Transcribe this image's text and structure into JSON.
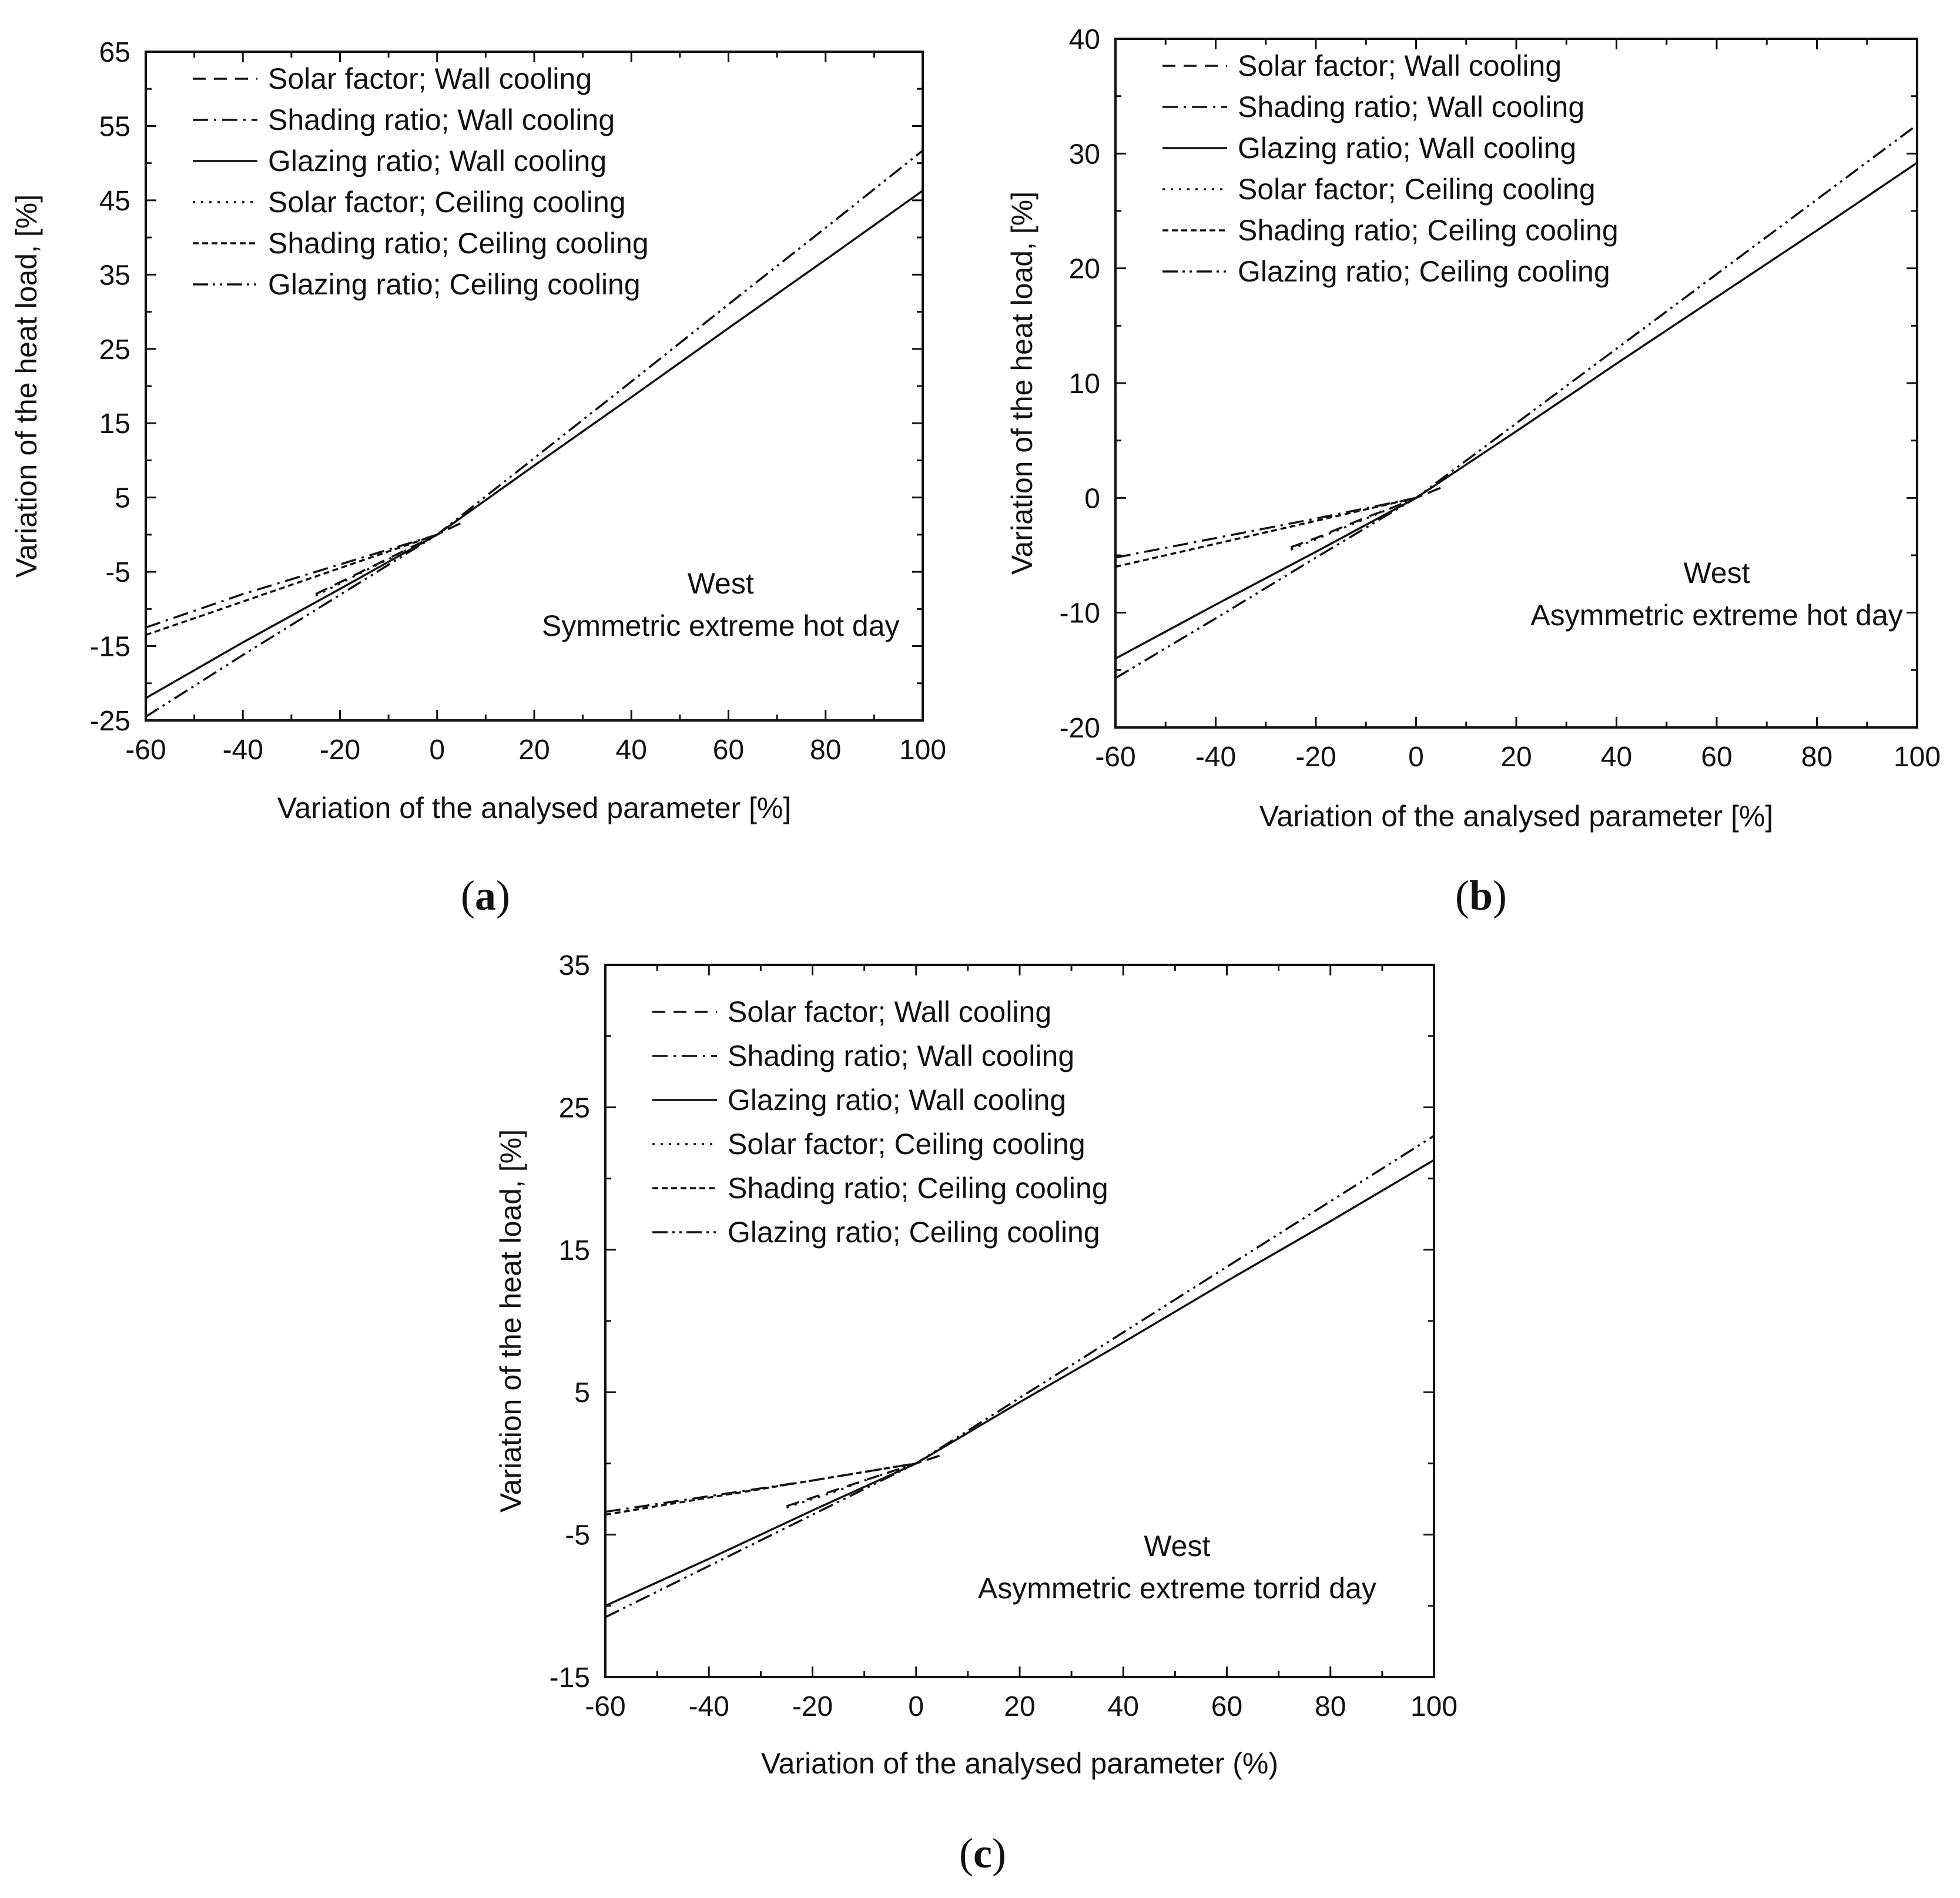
{
  "chart_data": [
    {
      "panel_label": "a",
      "type": "line",
      "xlabel": "Variation of the analysed parameter [%]",
      "ylabel": "Variation of the heat load, [%]",
      "xlim": [
        -60,
        100
      ],
      "ylim": [
        -25,
        65
      ],
      "xticks": [
        -60,
        -40,
        -20,
        0,
        20,
        40,
        60,
        80,
        100
      ],
      "yticks": [
        -25,
        -15,
        -5,
        5,
        15,
        25,
        35,
        45,
        55,
        65
      ],
      "annotation": [
        "West",
        "Symmetric extreme hot day"
      ],
      "legend_position": "top-left",
      "series": [
        {
          "name": "Solar factor; Wall cooling",
          "style": "dashed",
          "x": [
            -25,
            -20,
            -15,
            -10,
            -5,
            0,
            5
          ],
          "y": [
            -8.0,
            -6.4,
            -4.8,
            -3.2,
            -1.6,
            0.0,
            1.6
          ]
        },
        {
          "name": "Shading ratio; Wall cooling",
          "style": "dashdot",
          "x": [
            -60,
            -40,
            -20,
            0
          ],
          "y": [
            -12.5,
            -8.0,
            -4.0,
            0.0
          ]
        },
        {
          "name": "Glazing ratio; Wall cooling",
          "style": "solid",
          "x": [
            -60,
            -40,
            -20,
            0,
            20,
            40,
            60,
            80,
            100
          ],
          "y": [
            -22.0,
            -14.5,
            -7.3,
            0.0,
            9.3,
            18.5,
            27.8,
            37.0,
            46.3
          ]
        },
        {
          "name": "Solar factor; Ceiling cooling",
          "style": "dotted",
          "x": [
            -25,
            -20,
            -15,
            -10,
            -5,
            0,
            5
          ],
          "y": [
            -8.2,
            -6.6,
            -4.9,
            -3.3,
            -1.6,
            0.0,
            1.6
          ]
        },
        {
          "name": "Shading ratio; Ceiling cooling",
          "style": "shortdash",
          "x": [
            -60,
            -40,
            -20,
            0
          ],
          "y": [
            -13.5,
            -9.0,
            -4.5,
            0.0
          ]
        },
        {
          "name": "Glazing ratio; Ceiling cooling",
          "style": "dashdotdot",
          "x": [
            -60,
            -40,
            -20,
            0,
            20,
            40,
            60,
            80,
            100
          ],
          "y": [
            -24.5,
            -16.2,
            -8.1,
            0.0,
            10.3,
            20.6,
            31.0,
            41.3,
            51.7
          ]
        }
      ]
    },
    {
      "panel_label": "b",
      "type": "line",
      "xlabel": "Variation of the analysed parameter [%]",
      "ylabel": "Variation of the heat load, [%]",
      "xlim": [
        -60,
        100
      ],
      "ylim": [
        -20,
        40
      ],
      "xticks": [
        -60,
        -40,
        -20,
        0,
        20,
        40,
        60,
        80,
        100
      ],
      "yticks": [
        -20,
        -10,
        0,
        10,
        20,
        30,
        40
      ],
      "annotation": [
        "West",
        "Asymmetric extreme hot day"
      ],
      "legend_position": "top-left",
      "series": [
        {
          "name": "Solar factor; Wall cooling",
          "style": "dashed",
          "x": [
            -25,
            -20,
            -15,
            -10,
            -5,
            0,
            5
          ],
          "y": [
            -4.3,
            -3.5,
            -2.6,
            -1.7,
            -0.9,
            0.0,
            0.9
          ]
        },
        {
          "name": "Shading ratio; Wall cooling",
          "style": "dashdot",
          "x": [
            -60,
            -40,
            -20,
            0
          ],
          "y": [
            -5.2,
            -3.5,
            -1.8,
            0.0
          ]
        },
        {
          "name": "Glazing ratio; Wall cooling",
          "style": "solid",
          "x": [
            -60,
            -40,
            -20,
            0,
            20,
            40,
            60,
            80,
            100
          ],
          "y": [
            -14.0,
            -9.3,
            -4.7,
            0.0,
            5.8,
            11.7,
            17.5,
            23.3,
            29.2
          ]
        },
        {
          "name": "Solar factor; Ceiling cooling",
          "style": "dotted",
          "x": [
            -25,
            -20,
            -15,
            -10,
            -5,
            0,
            5
          ],
          "y": [
            -4.5,
            -3.6,
            -2.7,
            -1.8,
            -0.9,
            0.0,
            0.9
          ]
        },
        {
          "name": "Shading ratio; Ceiling cooling",
          "style": "shortdash",
          "x": [
            -60,
            -40,
            -20,
            0
          ],
          "y": [
            -6.0,
            -4.0,
            -2.0,
            0.0
          ]
        },
        {
          "name": "Glazing ratio; Ceiling cooling",
          "style": "dashdotdot",
          "x": [
            -60,
            -40,
            -20,
            0,
            20,
            40,
            60,
            80,
            100
          ],
          "y": [
            -15.7,
            -10.5,
            -5.2,
            0.0,
            6.5,
            13.0,
            19.5,
            26.0,
            32.5
          ]
        }
      ]
    },
    {
      "panel_label": "c",
      "type": "line",
      "xlabel": "Variation of the analysed parameter (%)",
      "ylabel": "Variation of the heat load, [%]",
      "xlim": [
        -60,
        100
      ],
      "ylim": [
        -15,
        35
      ],
      "xticks": [
        -60,
        -40,
        -20,
        0,
        20,
        40,
        60,
        80,
        100
      ],
      "yticks": [
        -15,
        -5,
        5,
        15,
        25,
        35
      ],
      "annotation": [
        "West",
        "Asymmetric extreme torrid day"
      ],
      "legend_position": "top-left",
      "series": [
        {
          "name": "Solar factor; Wall cooling",
          "style": "dashed",
          "x": [
            -25,
            -20,
            -15,
            -10,
            -5,
            0,
            5
          ],
          "y": [
            -3.0,
            -2.4,
            -1.8,
            -1.2,
            -0.6,
            0.0,
            0.6
          ]
        },
        {
          "name": "Shading ratio; Wall cooling",
          "style": "dashdot",
          "x": [
            -60,
            -40,
            -20,
            0
          ],
          "y": [
            -3.4,
            -2.3,
            -1.2,
            0.0
          ]
        },
        {
          "name": "Glazing ratio; Wall cooling",
          "style": "solid",
          "x": [
            -60,
            -40,
            -20,
            0,
            20,
            40,
            60,
            80,
            100
          ],
          "y": [
            -10.0,
            -6.7,
            -3.3,
            0.0,
            4.3,
            8.5,
            12.8,
            17.0,
            21.3
          ]
        },
        {
          "name": "Solar factor; Ceiling cooling",
          "style": "dotted",
          "x": [
            -25,
            -20,
            -15,
            -10,
            -5,
            0,
            5
          ],
          "y": [
            -3.1,
            -2.5,
            -1.9,
            -1.2,
            -0.6,
            0.0,
            0.6
          ]
        },
        {
          "name": "Shading ratio; Ceiling cooling",
          "style": "shortdash",
          "x": [
            -60,
            -40,
            -20,
            0
          ],
          "y": [
            -3.6,
            -2.4,
            -1.2,
            0.0
          ]
        },
        {
          "name": "Glazing ratio; Ceiling cooling",
          "style": "dashdotdot",
          "x": [
            -60,
            -40,
            -20,
            0,
            20,
            40,
            60,
            80,
            100
          ],
          "y": [
            -10.8,
            -7.2,
            -3.6,
            0.0,
            4.6,
            9.2,
            13.8,
            18.4,
            23.0
          ]
        }
      ]
    }
  ],
  "colors": {
    "line": "#111111",
    "axis": "#111111",
    "background": "#ffffff"
  }
}
